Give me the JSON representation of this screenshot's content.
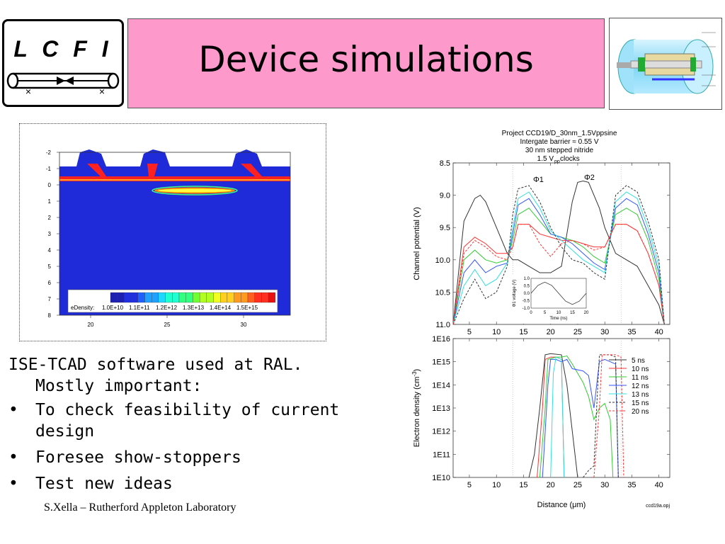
{
  "logo": {
    "text": "L C F I"
  },
  "title": "Device simulations",
  "simulation": {
    "y_ticks": [
      "-2",
      "-1",
      "0",
      "1",
      "2",
      "3",
      "4",
      "5",
      "6",
      "7",
      "8"
    ],
    "x_ticks": [
      "20",
      "25",
      "30"
    ],
    "legend_label": "eDensity:",
    "legend_values": [
      "1.0E+10",
      "1.1E+11",
      "1.2E+12",
      "1.3E+13",
      "1.4E+14",
      "1.5E+15"
    ]
  },
  "bullets": {
    "intro_1": "ISE-TCAD software used at RAL.",
    "intro_2": "Mostly important:",
    "items": [
      {
        "line1": "To check feasibility of current",
        "line2": "design"
      },
      {
        "line1": "Foresee show-stoppers",
        "line2": ""
      },
      {
        "line1": "Test new ideas",
        "line2": ""
      }
    ],
    "bullet_char": "•"
  },
  "footer": "S.Xella – Rutherford Appleton Laboratory",
  "chart_data": [
    {
      "type": "line",
      "title": "Project CCD19/D_30nm_1.5Vppsine",
      "subtitle_lines": [
        "Intergate barrier ≈ 0.55 V",
        "30 nm stepped nitride",
        "1.5 V",
        "pp",
        " clocks"
      ],
      "ylabel": "Channel potential (V)",
      "ylim": [
        8.5,
        11.0
      ],
      "y_inverted": true,
      "y_ticks": [
        "8.5",
        "9.0",
        "9.5",
        "10.0",
        "10.5",
        "11.0"
      ],
      "x_ticks": [
        "5",
        "10",
        "15",
        "20",
        "25",
        "30",
        "35",
        "40"
      ],
      "xlim": [
        2,
        42
      ],
      "annotations": [
        "Φ1",
        "Φ2"
      ],
      "series": [
        {
          "color": "#333333",
          "dash": "",
          "x": [
            2,
            4,
            6,
            7,
            8,
            10,
            12,
            13,
            14,
            16,
            18,
            20,
            22,
            24,
            25,
            26,
            27,
            28,
            29,
            30,
            32,
            34,
            36,
            38,
            40,
            41
          ],
          "y": [
            11,
            9.4,
            9.05,
            9.0,
            9.1,
            9.5,
            9.9,
            10.0,
            10.0,
            10.1,
            10.2,
            10.2,
            10.1,
            9.1,
            8.8,
            8.78,
            8.8,
            9.0,
            9.2,
            9.5,
            9.9,
            10.0,
            10.1,
            10.4,
            10.7,
            11.0
          ]
        },
        {
          "color": "#ff3333",
          "dash": "",
          "x": [
            2,
            4,
            6,
            8,
            10,
            12,
            13,
            14,
            16,
            18,
            20,
            22,
            24,
            26,
            28,
            30,
            32,
            34,
            36,
            38,
            40,
            41
          ],
          "y": [
            11,
            9.8,
            9.65,
            9.75,
            9.9,
            9.9,
            9.8,
            9.45,
            9.45,
            9.6,
            9.65,
            9.7,
            9.7,
            9.75,
            9.8,
            9.8,
            9.45,
            9.45,
            9.55,
            9.9,
            10.4,
            11.0
          ]
        },
        {
          "color": "#33cc33",
          "dash": "",
          "x": [
            2,
            4,
            6,
            8,
            10,
            12,
            13,
            14,
            16,
            18,
            20,
            22,
            24,
            26,
            28,
            30,
            32,
            34,
            36,
            38,
            40,
            41
          ],
          "y": [
            11,
            10.0,
            9.85,
            10.0,
            10.05,
            10.0,
            9.7,
            9.3,
            9.2,
            9.4,
            9.6,
            9.65,
            9.7,
            9.8,
            9.95,
            10.05,
            9.3,
            9.2,
            9.3,
            9.7,
            10.3,
            11.0
          ]
        },
        {
          "color": "#3355ff",
          "dash": "",
          "x": [
            2,
            4,
            6,
            8,
            10,
            12,
            13,
            14,
            16,
            18,
            20,
            22,
            24,
            26,
            28,
            30,
            32,
            34,
            36,
            38,
            40,
            41
          ],
          "y": [
            11,
            10.2,
            10.0,
            10.2,
            10.1,
            10.05,
            9.6,
            9.15,
            9.05,
            9.3,
            9.6,
            9.65,
            9.75,
            9.9,
            10.05,
            10.15,
            9.2,
            9.05,
            9.15,
            9.6,
            10.2,
            11.0
          ]
        },
        {
          "color": "#33e0e0",
          "dash": "",
          "x": [
            2,
            4,
            6,
            8,
            10,
            12,
            13,
            14,
            16,
            18,
            20,
            22,
            24,
            26,
            28,
            30,
            32,
            34,
            36,
            38,
            40,
            41
          ],
          "y": [
            11,
            10.4,
            10.15,
            10.4,
            10.3,
            10.05,
            9.5,
            9.05,
            8.95,
            9.2,
            9.55,
            9.7,
            9.85,
            10.0,
            10.1,
            10.2,
            9.1,
            8.95,
            9.05,
            9.5,
            10.1,
            11.0
          ]
        },
        {
          "color": "#333333",
          "dash": "3,2",
          "x": [
            2,
            4,
            6,
            8,
            10,
            12,
            13,
            14,
            16,
            18,
            20,
            22,
            24,
            26,
            28,
            30,
            32,
            34,
            36,
            38,
            40,
            41
          ],
          "y": [
            11,
            10.6,
            10.3,
            10.6,
            10.5,
            10.1,
            9.3,
            8.9,
            8.85,
            9.1,
            9.5,
            9.8,
            10.0,
            10.05,
            10.2,
            10.3,
            9.0,
            8.85,
            8.95,
            9.4,
            10.0,
            11.0
          ]
        },
        {
          "color": "#ff3333",
          "dash": "3,2",
          "x": [
            2,
            4,
            6,
            8,
            10,
            12,
            13,
            14,
            16,
            18,
            20,
            22,
            24,
            26,
            28,
            30,
            32,
            34,
            36,
            38,
            40,
            41
          ],
          "y": [
            11,
            9.9,
            9.7,
            9.8,
            9.95,
            10.0,
            9.8,
            9.45,
            9.45,
            9.75,
            9.95,
            9.75,
            9.7,
            9.75,
            9.85,
            9.8,
            9.45,
            9.45,
            9.55,
            9.9,
            10.4,
            11.0
          ]
        }
      ]
    },
    {
      "type": "line",
      "title": "",
      "xlabel": "Distance (μm)",
      "ylabel": "Electron density (cm",
      "ylabel_sup": "-3",
      "ylabel_end": ")",
      "y_scale": "log",
      "ylim": [
        "1E10",
        "1E16"
      ],
      "y_ticks": [
        "1E16",
        "1E15",
        "1E14",
        "1E13",
        "1E12",
        "1E11",
        "1E10"
      ],
      "x_ticks": [
        "5",
        "10",
        "15",
        "20",
        "25",
        "30",
        "35",
        "40"
      ],
      "xlim": [
        2,
        42
      ],
      "footnote": "ccd19a.opj",
      "series": [
        {
          "name": "5 ns",
          "color": "#333333",
          "dash": "",
          "x": [
            16,
            17,
            18,
            19,
            20,
            22,
            23,
            24,
            25
          ],
          "y": [
            10,
            11,
            13,
            15.3,
            15.35,
            15.3,
            14,
            12,
            10
          ]
        },
        {
          "name": "10 ns",
          "color": "#ff3333",
          "dash": "",
          "x": [
            17.5,
            18.5,
            19,
            20,
            21,
            22,
            22.5
          ],
          "y": [
            10,
            13,
            15.1,
            15.2,
            15.2,
            15.1,
            10
          ]
        },
        {
          "name": "11 ns",
          "color": "#33cc33",
          "dash": "",
          "x": [
            18,
            19,
            19.5,
            21,
            22,
            23,
            24,
            25,
            26,
            27,
            28,
            29,
            30,
            31,
            31.5
          ],
          "y": [
            10,
            13,
            15.1,
            15.2,
            15.2,
            15.25,
            14.9,
            14.5,
            14.1,
            13.5,
            12.5,
            13,
            13.2,
            12.5,
            10
          ]
        },
        {
          "name": "12 ns",
          "color": "#3355ff",
          "dash": "",
          "x": [
            18.5,
            19.5,
            20,
            21,
            22,
            23,
            24,
            26,
            27,
            28,
            29,
            30,
            31,
            32,
            32.5
          ],
          "y": [
            10,
            14,
            15.1,
            15.1,
            15.0,
            15.1,
            14.7,
            14.6,
            14.4,
            13,
            15.0,
            15.1,
            15.0,
            14.9,
            10
          ]
        },
        {
          "name": "13 ns",
          "color": "#33e0e0",
          "dash": "",
          "x": [
            20,
            20.5,
            21,
            22,
            22.5
          ],
          "y": [
            10,
            14.5,
            15.2,
            15.1,
            10
          ]
        },
        {
          "name": "15 ns",
          "color": "#333333",
          "dash": "3,2",
          "x": [
            26,
            27,
            28,
            28.5,
            29,
            30,
            31,
            32,
            32.5
          ],
          "y": [
            10,
            10.3,
            10.5,
            13,
            15.3,
            15.3,
            15.3,
            15.2,
            10
          ]
        },
        {
          "name": "20 ns",
          "color": "#ff3333",
          "dash": "3,2",
          "x": [
            28,
            29,
            29.5,
            30,
            31,
            32,
            33,
            33.5
          ],
          "y": [
            10,
            13,
            15.3,
            15.3,
            15.3,
            15.3,
            15.2,
            10
          ]
        }
      ]
    },
    {
      "type": "line",
      "title": "",
      "xlabel": "Time (ns)",
      "ylabel": "Φ1 voltage (V)",
      "ylim": [
        -1.0,
        1.0
      ],
      "y_ticks": [
        "1.0",
        "0.5",
        "0.0",
        "-0.5",
        "-1.0"
      ],
      "x_ticks": [
        "0",
        "5",
        "10",
        "15",
        "20"
      ],
      "series": [
        {
          "color": "#333333",
          "dash": "",
          "x": [
            0,
            2.5,
            5,
            7.5,
            10,
            12.5,
            15,
            17.5,
            20
          ],
          "y": [
            0,
            0.53,
            0.75,
            0.53,
            0,
            -0.53,
            -0.75,
            -0.53,
            0
          ]
        }
      ]
    }
  ]
}
